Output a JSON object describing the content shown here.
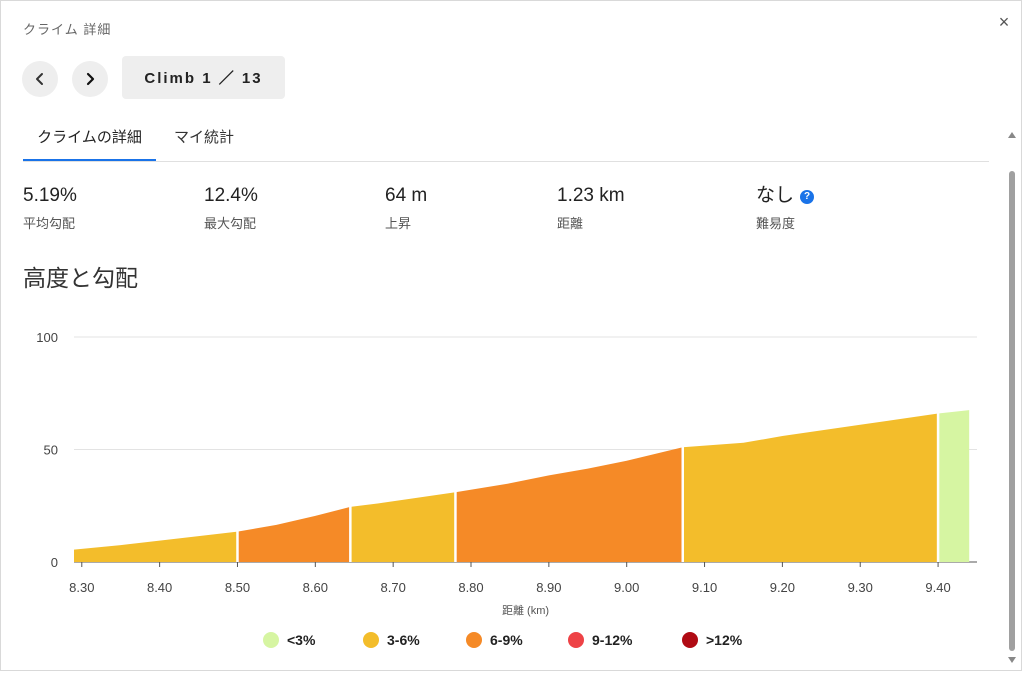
{
  "dialog": {
    "title": "クライム 詳細",
    "close_glyph": "×"
  },
  "nav": {
    "prev_icon": "chevron-left-icon",
    "next_icon": "chevron-right-icon",
    "climb_label": "Climb 1 ／ 13"
  },
  "tabs": [
    {
      "label": "クライムの詳細",
      "active": true
    },
    {
      "label": "マイ統計",
      "active": false
    }
  ],
  "stats": [
    {
      "value": "5.19%",
      "label": "平均勾配"
    },
    {
      "value": "12.4%",
      "label": "最大勾配"
    },
    {
      "value": "64 m",
      "label": "上昇"
    },
    {
      "value": "1.23 km",
      "label": "距離"
    },
    {
      "value": "なし",
      "label": "難易度",
      "help": "?"
    }
  ],
  "section_title": "高度と勾配",
  "chart_data": {
    "type": "area",
    "xlabel": "距離 (km)",
    "ylabel": "",
    "xlim": [
      8.29,
      9.45
    ],
    "ylim": [
      0,
      100
    ],
    "xticks": [
      "8.30",
      "8.40",
      "8.50",
      "8.60",
      "8.70",
      "8.80",
      "8.90",
      "9.00",
      "9.10",
      "9.20",
      "9.30",
      "9.40"
    ],
    "yticks": [
      "0",
      "50",
      "100"
    ],
    "grid": true,
    "profile": [
      [
        8.29,
        5.5
      ],
      [
        8.35,
        7.5
      ],
      [
        8.4,
        9.5
      ],
      [
        8.45,
        11.5
      ],
      [
        8.5,
        13.5
      ],
      [
        8.55,
        16.5
      ],
      [
        8.6,
        20.5
      ],
      [
        8.645,
        24.5
      ],
      [
        8.68,
        26
      ],
      [
        8.72,
        28
      ],
      [
        8.78,
        31
      ],
      [
        8.85,
        35
      ],
      [
        8.9,
        38.5
      ],
      [
        8.95,
        41.5
      ],
      [
        9.0,
        45
      ],
      [
        9.072,
        51
      ],
      [
        9.15,
        53
      ],
      [
        9.2,
        56
      ],
      [
        9.3,
        61
      ],
      [
        9.4,
        66
      ],
      [
        9.44,
        67.5
      ]
    ],
    "segments": [
      {
        "from": 8.29,
        "to": 8.5,
        "grade": "3-6%"
      },
      {
        "from": 8.5,
        "to": 8.645,
        "grade": "6-9%"
      },
      {
        "from": 8.645,
        "to": 8.78,
        "grade": "3-6%"
      },
      {
        "from": 8.78,
        "to": 9.072,
        "grade": "6-9%"
      },
      {
        "from": 9.072,
        "to": 9.4,
        "grade": "3-6%"
      },
      {
        "from": 9.4,
        "to": 9.44,
        "grade": "<3%"
      }
    ],
    "legend": [
      {
        "label": "<3%",
        "color": "#d6f5a2"
      },
      {
        "label": "3-6%",
        "color": "#f3bd2b"
      },
      {
        "label": "6-9%",
        "color": "#f58a27"
      },
      {
        "label": "9-12%",
        "color": "#ee4246"
      },
      {
        "label": ">12%",
        "color": "#b00b14"
      }
    ]
  }
}
